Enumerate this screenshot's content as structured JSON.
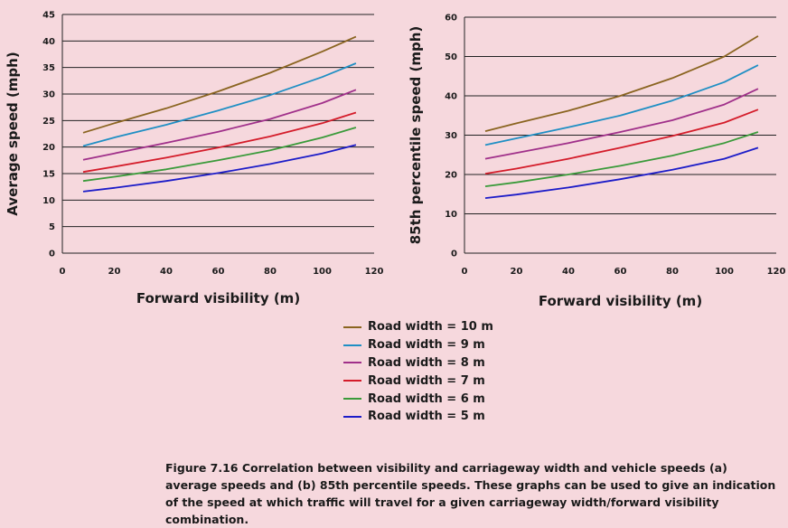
{
  "chart_data": [
    {
      "type": "line",
      "xlabel": "Forward visibility (m)",
      "ylabel": "Average speed (mph)",
      "xlim": [
        0,
        120
      ],
      "ylim": [
        0,
        45
      ],
      "xticks": [
        0,
        20,
        40,
        60,
        80,
        100,
        120
      ],
      "yticks": [
        0,
        5,
        10,
        15,
        20,
        25,
        30,
        35,
        40,
        45
      ],
      "grid": "horizontal",
      "series": [
        {
          "name": "Road width = 10 m",
          "color": "#8a6420",
          "x": [
            8,
            20,
            40,
            60,
            80,
            100,
            113
          ],
          "y": [
            22.7,
            24.5,
            27.3,
            30.5,
            34.0,
            38.0,
            40.8
          ]
        },
        {
          "name": "Road width = 9 m",
          "color": "#1f8fc4",
          "x": [
            8,
            20,
            40,
            60,
            80,
            100,
            113
          ],
          "y": [
            20.2,
            21.8,
            24.2,
            26.9,
            29.8,
            33.2,
            35.8
          ]
        },
        {
          "name": "Road width = 8 m",
          "color": "#a0308a",
          "x": [
            8,
            20,
            40,
            60,
            80,
            100,
            113
          ],
          "y": [
            17.6,
            18.8,
            20.8,
            22.9,
            25.3,
            28.3,
            30.8
          ]
        },
        {
          "name": "Road width = 7 m",
          "color": "#d41c2a",
          "x": [
            8,
            20,
            40,
            60,
            80,
            100,
            113
          ],
          "y": [
            15.3,
            16.3,
            18.0,
            19.9,
            22.0,
            24.5,
            26.5
          ]
        },
        {
          "name": "Road width = 6 m",
          "color": "#3a9a3a",
          "x": [
            8,
            20,
            40,
            60,
            80,
            100,
            113
          ],
          "y": [
            13.6,
            14.4,
            15.8,
            17.5,
            19.4,
            21.8,
            23.7
          ]
        },
        {
          "name": "Road width = 5 m",
          "color": "#1c1cc8",
          "x": [
            8,
            20,
            40,
            60,
            80,
            100,
            113
          ],
          "y": [
            11.6,
            12.3,
            13.6,
            15.1,
            16.8,
            18.8,
            20.4
          ]
        }
      ]
    },
    {
      "type": "line",
      "xlabel": "Forward visibility (m)",
      "ylabel": "85th percentile speed (mph)",
      "xlim": [
        0,
        120
      ],
      "ylim": [
        0,
        60
      ],
      "xticks": [
        0,
        20,
        40,
        60,
        80,
        100,
        120
      ],
      "yticks": [
        0,
        10,
        20,
        30,
        40,
        50,
        60
      ],
      "grid": "horizontal",
      "series": [
        {
          "name": "Road width = 10 m",
          "color": "#8a6420",
          "x": [
            8,
            20,
            40,
            60,
            80,
            100,
            113
          ],
          "y": [
            31.0,
            33.0,
            36.2,
            40.0,
            44.5,
            50.0,
            55.2
          ]
        },
        {
          "name": "Road width = 9 m",
          "color": "#1f8fc4",
          "x": [
            8,
            20,
            40,
            60,
            80,
            100,
            113
          ],
          "y": [
            27.5,
            29.2,
            32.0,
            35.0,
            38.8,
            43.5,
            47.8
          ]
        },
        {
          "name": "Road width = 8 m",
          "color": "#a0308a",
          "x": [
            8,
            20,
            40,
            60,
            80,
            100,
            113
          ],
          "y": [
            24.0,
            25.5,
            28.0,
            30.8,
            33.8,
            37.8,
            41.8
          ]
        },
        {
          "name": "Road width = 7 m",
          "color": "#d41c2a",
          "x": [
            8,
            20,
            40,
            60,
            80,
            100,
            113
          ],
          "y": [
            20.2,
            21.5,
            24.0,
            26.8,
            29.8,
            33.2,
            36.5
          ]
        },
        {
          "name": "Road width = 6 m",
          "color": "#3a9a3a",
          "x": [
            8,
            20,
            40,
            60,
            80,
            100,
            113
          ],
          "y": [
            17.0,
            18.0,
            20.0,
            22.2,
            24.8,
            28.0,
            30.8
          ]
        },
        {
          "name": "Road width = 5 m",
          "color": "#1c1cc8",
          "x": [
            8,
            20,
            40,
            60,
            80,
            100,
            113
          ],
          "y": [
            14.0,
            14.9,
            16.7,
            18.8,
            21.2,
            24.0,
            26.8
          ]
        }
      ]
    }
  ],
  "legend": {
    "items": [
      {
        "label": "Road width = 10 m",
        "color": "#8a6420"
      },
      {
        "label": "Road width = 9 m",
        "color": "#1f8fc4"
      },
      {
        "label": "Road width = 8 m",
        "color": "#a0308a"
      },
      {
        "label": "Road width = 7 m",
        "color": "#d41c2a"
      },
      {
        "label": "Road width = 6 m",
        "color": "#3a9a3a"
      },
      {
        "label": "Road width = 5 m",
        "color": "#1c1cc8"
      }
    ]
  },
  "caption": "Figure 7.16 Correlation between visibility and carriageway width and vehicle speeds (a) average speeds and (b) 85th percentile speeds. These graphs can be used to give an indication of the speed at which traffic will travel for a given carriageway width/forward visibility combination."
}
